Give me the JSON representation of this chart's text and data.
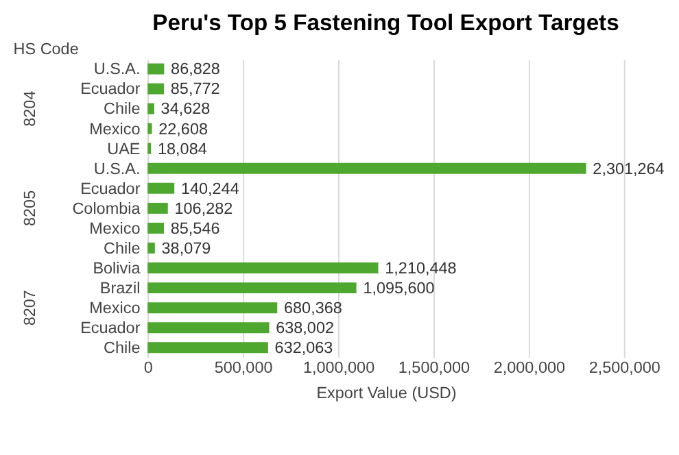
{
  "chart_data": {
    "type": "bar",
    "orientation": "horizontal",
    "title": "Peru's Top 5 Fastening Tool Export Targets",
    "xlabel": "Export Value (USD)",
    "ylabel": "HS Code",
    "categories": [
      "U.S.A.",
      "Ecuador",
      "Chile",
      "Mexico",
      "UAE",
      "U.S.A.",
      "Ecuador",
      "Colombia",
      "Mexico",
      "Chile",
      "Bolivia",
      "Brazil",
      "Mexico",
      "Ecuador",
      "Chile"
    ],
    "values": [
      86828,
      85772,
      34628,
      22608,
      18084,
      2301264,
      140244,
      106282,
      85546,
      38079,
      1210448,
      1095600,
      680368,
      638002,
      632063
    ],
    "color": "#4ea72e",
    "value_labels": [
      "86,828",
      "85,772",
      "34,628",
      "22,608",
      "18,084",
      "2,301,264",
      "140,244",
      "106,282",
      "85,546",
      "38,079",
      "1,210,448",
      "1,095,600",
      "680,368",
      "638,002",
      "632,063"
    ],
    "xlim": [
      0,
      2500000
    ],
    "xticks": [
      0,
      {
        "value": 500000,
        "label": "500,000"
      },
      {
        "value": 1000000,
        "label": "1,000,000"
      },
      {
        "value": 1500000,
        "label": "1,500,000"
      },
      {
        "value": 2000000,
        "label": "2,000,000"
      },
      {
        "value": 2500000,
        "label": "2,500,000"
      }
    ],
    "grid": "x",
    "annotations": [
      "8204",
      "8205",
      "8207"
    ]
  }
}
